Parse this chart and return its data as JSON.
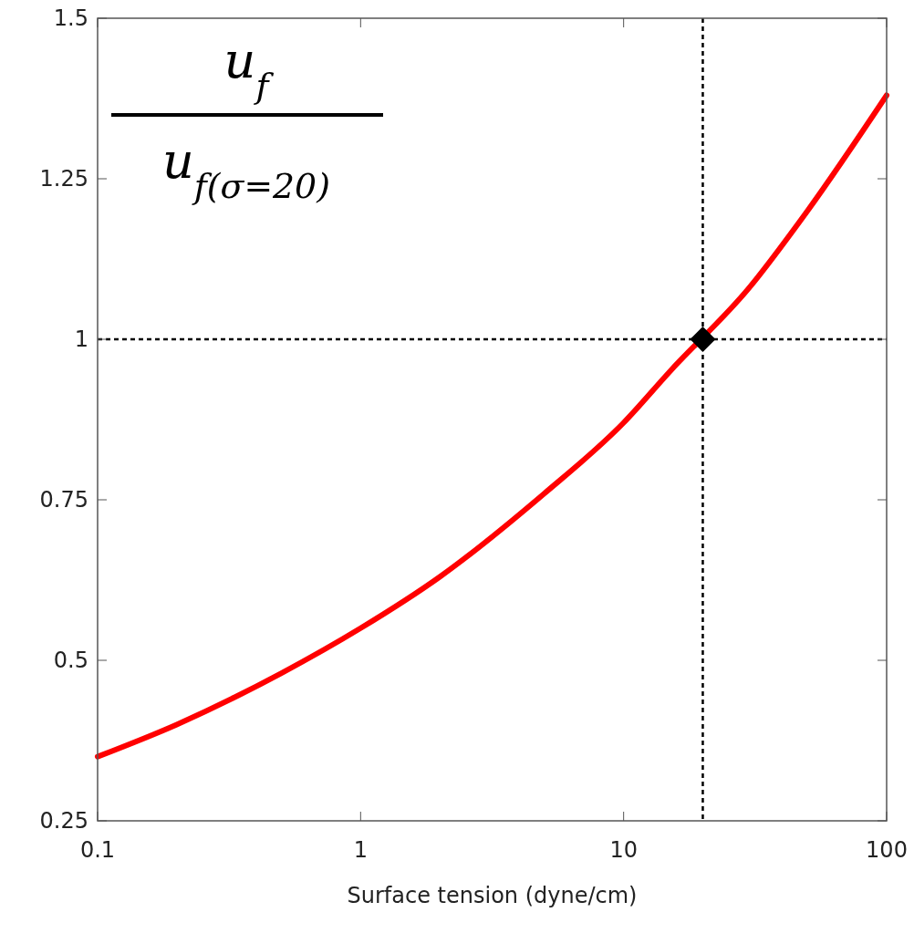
{
  "chart_data": {
    "type": "line",
    "xlabel": "Surface tension (dyne/cm)",
    "annotations": [
      "u$_{f}$",
      "u$_{f(σ=20)}$"
    ],
    "log": "x",
    "grid": false,
    "xlim": [
      0.1,
      100
    ],
    "xticks": [
      0.1,
      1,
      10,
      100
    ],
    "ylim": [
      0.25,
      1.5
    ],
    "yticks": [
      0.25,
      0.5,
      0.75,
      {
        "value": 1,
        "label": "1"
      },
      1.25,
      1.5
    ],
    "ref_lines": [
      {
        "axis": "x",
        "value": 20,
        "color": "#000000",
        "line_style": "dashed"
      },
      {
        "axis": "y",
        "value": 1,
        "color": "#000000",
        "line_style": "dashed"
      }
    ],
    "series": [
      {
        "color": "#ff0000",
        "marker": "none",
        "line_style": "solid",
        "x": [
          0.1,
          0.2,
          0.5,
          1,
          2,
          5,
          10,
          15,
          30,
          50,
          100
        ],
        "values": [
          0.35,
          0.4,
          0.48,
          0.55,
          0.63,
          0.76,
          0.87,
          0.95,
          1.08,
          1.2,
          1.38
        ]
      },
      {
        "type": "scatter",
        "color": "#000000",
        "marker": "diamond",
        "x": [
          20
        ],
        "values": [
          1
        ]
      }
    ]
  }
}
